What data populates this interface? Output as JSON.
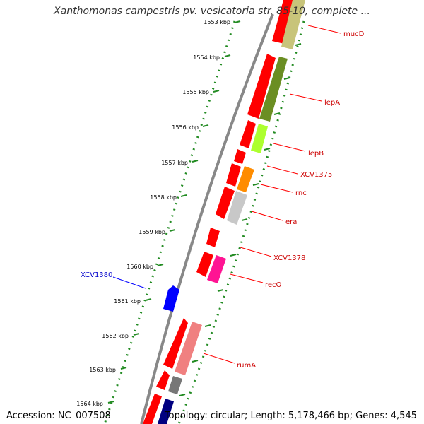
{
  "title": "Xanthomonas campestris pv. vesicatoria str. 85-10, complete ...",
  "accession": "Accession: NC_007508",
  "topology": "Topology: circular; Length: 5,178,466 bp; Genes: 4,545",
  "colors": {
    "backbone": "#888888",
    "tick": "#228b22",
    "gene_red": "#ff0000",
    "label_red": "#cc0000",
    "label_blue": "#0000cc",
    "line_red": "#ff0000",
    "line_blue": "#0000ff"
  },
  "scale": {
    "unit": "kbp",
    "ticks": [
      {
        "label": "1553 kbp"
      },
      {
        "label": "1554 kbp"
      },
      {
        "label": "1555 kbp"
      },
      {
        "label": "1556 kbp"
      },
      {
        "label": "1557 kbp"
      },
      {
        "label": "1558 kbp"
      },
      {
        "label": "1559 kbp"
      },
      {
        "label": "1560 kbp"
      },
      {
        "label": "1561 kbp"
      },
      {
        "label": "1562 kbp"
      },
      {
        "label": "1563 kbp"
      },
      {
        "label": "1564 kbp"
      }
    ]
  },
  "features": [
    {
      "name": "mucD",
      "cog_color": "#c8c47a"
    },
    {
      "name": "lepA",
      "cog_color": "#6b8e23"
    },
    {
      "name": "lepB",
      "cog_color": "#adff2f"
    },
    {
      "name": "XCV1375",
      "cog_color": ""
    },
    {
      "name": "rnc",
      "cog_color": "#ff8c00"
    },
    {
      "name": "era",
      "cog_color": "#c8c8c8"
    },
    {
      "name": "XCV1378",
      "cog_color": ""
    },
    {
      "name": "recO",
      "cog_color": "#ff1493"
    },
    {
      "name": "XCV1380",
      "cog_color": "#0000ff"
    },
    {
      "name": "rumA",
      "cog_color": "#f08080"
    }
  ]
}
